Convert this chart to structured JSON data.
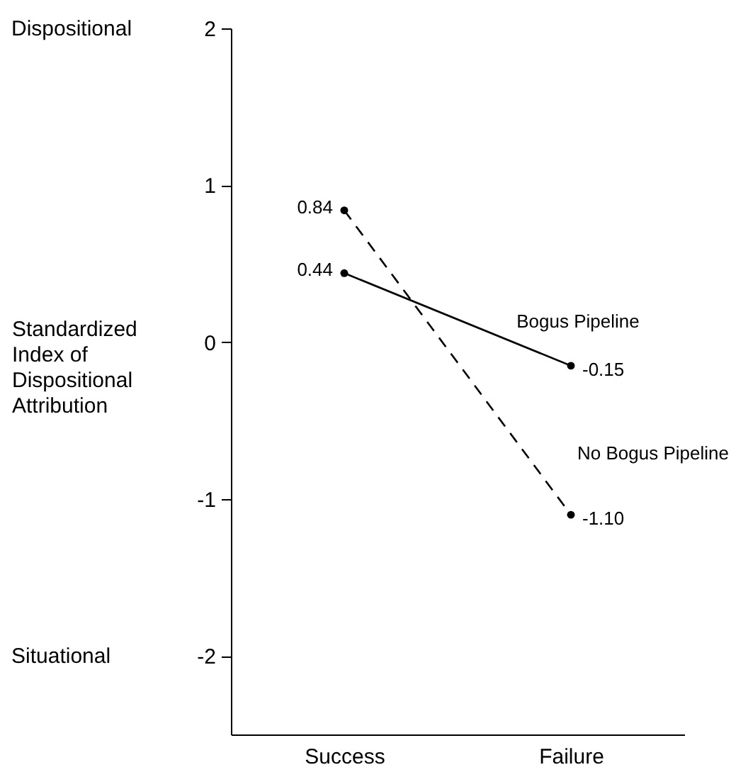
{
  "chart_data": {
    "type": "line",
    "ylabel": "Standardized Index of Dispositional Attribution",
    "annotations": [
      "Dispositional",
      "Situational"
    ],
    "categories": [
      "Success",
      "Failure"
    ],
    "series": [
      {
        "name": "Bogus Pipeline",
        "color": "#000000",
        "line_style": "solid",
        "values": [
          0.44,
          -0.15
        ],
        "value_labels": [
          "0.44",
          "-0.15"
        ]
      },
      {
        "name": "No Bogus Pipeline",
        "color": "#000000",
        "line_style": "dashed",
        "values": [
          0.84,
          -1.1
        ],
        "value_labels": [
          "0.84",
          "-1.10"
        ]
      }
    ],
    "ylim": [
      -2.5,
      2
    ],
    "yticks": [
      -2,
      -1,
      0,
      1,
      2
    ],
    "marker": "circle"
  }
}
